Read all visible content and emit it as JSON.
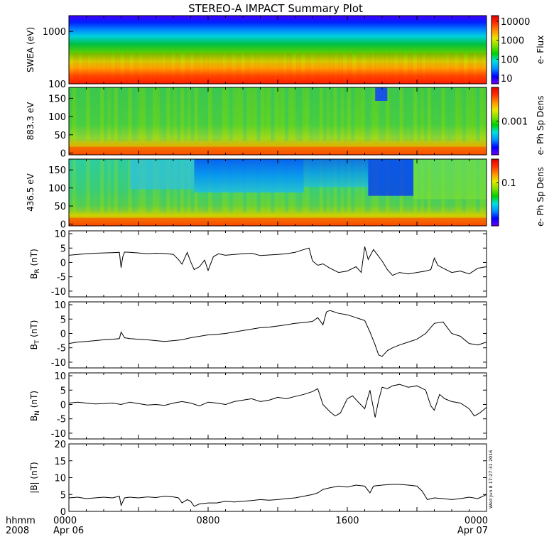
{
  "title": "STEREO-A IMPACT Summary Plot",
  "stamp": "Wed Jun  8 17:27:31 2016",
  "x_axis": {
    "label_line1": "hhmm",
    "label_line2": "2008",
    "ticks": [
      {
        "t": 0,
        "label": "0000",
        "sub": "Apr 06"
      },
      {
        "t": 8,
        "label": "0800",
        "sub": ""
      },
      {
        "t": 16,
        "label": "1600",
        "sub": ""
      },
      {
        "t": 24,
        "label": "0000",
        "sub": "Apr 07"
      }
    ]
  },
  "chart_data": [
    {
      "type": "heatmap",
      "panel": "swea",
      "ylabel": "SWEA (eV)",
      "yscale": "log",
      "ylim": [
        100,
        2000
      ],
      "yticks": [
        {
          "v": 100,
          "label": "100"
        },
        {
          "v": 1000,
          "label": "1000"
        }
      ],
      "colorbar": {
        "label": "e- Flux",
        "scale": "log",
        "range": [
          5,
          20000
        ],
        "ticks": [
          {
            "v": 10,
            "label": "10"
          },
          {
            "v": 100,
            "label": "100"
          },
          {
            "v": 1000,
            "label": "1000"
          },
          {
            "v": 10000,
            "label": "10000"
          }
        ]
      },
      "color_stops": [
        "#6a00ff",
        "#0000ff",
        "#0090ff",
        "#00e0e0",
        "#00d000",
        "#80e000",
        "#e8e800",
        "#ff9000",
        "#ff3000",
        "#e00000"
      ]
    },
    {
      "type": "heatmap",
      "panel": "pad_883",
      "ylabel": "883.3 eV",
      "ylim": [
        -5,
        180
      ],
      "yticks": [
        {
          "v": 0,
          "label": "0"
        },
        {
          "v": 50,
          "label": "50"
        },
        {
          "v": 100,
          "label": "100"
        },
        {
          "v": 150,
          "label": "150"
        }
      ],
      "colorbar": {
        "label": "e- Ph Sp Dens",
        "ticks": [
          {
            "label": "0.001"
          }
        ]
      }
    },
    {
      "type": "heatmap",
      "panel": "pad_436",
      "ylabel": "436.5 eV",
      "ylim": [
        -5,
        180
      ],
      "yticks": [
        {
          "v": 0,
          "label": "0"
        },
        {
          "v": 50,
          "label": "50"
        },
        {
          "v": 100,
          "label": "100"
        },
        {
          "v": 150,
          "label": "150"
        }
      ],
      "colorbar": {
        "label": "e- Ph Sp Dens",
        "ticks": [
          {
            "label": "0.1"
          }
        ]
      }
    },
    {
      "type": "line",
      "panel": "br",
      "ylabel": "B",
      "ylabel_sub": "R",
      "ylabel_unit": " (nT)",
      "ylim": [
        -12,
        11
      ],
      "yticks": [
        -10,
        -5,
        0,
        5,
        10
      ],
      "x": [
        0,
        0.5,
        1,
        1.5,
        2,
        2.5,
        2.9,
        3.0,
        3.1,
        3.2,
        3.5,
        4,
        4.5,
        5,
        5.5,
        6,
        6.3,
        6.5,
        6.8,
        7,
        7.2,
        7.5,
        7.8,
        8,
        8.3,
        8.6,
        9,
        9.5,
        10,
        10.5,
        11,
        11.5,
        12,
        12.5,
        13,
        13.5,
        13.8,
        14,
        14.3,
        14.6,
        15,
        15.5,
        16,
        16.5,
        16.8,
        17,
        17.2,
        17.5,
        18,
        18.3,
        18.6,
        19,
        19.5,
        20,
        20.5,
        20.8,
        21,
        21.2,
        21.5,
        22,
        22.5,
        23,
        23.5,
        24
      ],
      "y": [
        2.5,
        2.8,
        3.0,
        3.2,
        3.3,
        3.4,
        3.5,
        -1.8,
        2.0,
        3.6,
        3.5,
        3.3,
        3.0,
        3.2,
        3.1,
        2.8,
        1.0,
        -0.6,
        3.5,
        0.2,
        -2.5,
        -1.5,
        0.8,
        -2.8,
        2.0,
        3.0,
        2.5,
        2.8,
        3.0,
        3.2,
        2.4,
        2.6,
        2.8,
        3.0,
        3.5,
        4.5,
        5.0,
        0.5,
        -1.0,
        -0.5,
        -2.0,
        -3.5,
        -3.0,
        -1.5,
        -3.5,
        5.5,
        1.0,
        4.5,
        0.5,
        -2.5,
        -4.5,
        -3.5,
        -4.0,
        -3.5,
        -3.0,
        -2.5,
        1.5,
        -1.0,
        -2.0,
        -3.5,
        -3.0,
        -4.0,
        -2.0,
        -1.5
      ]
    },
    {
      "type": "line",
      "panel": "bt",
      "ylabel": "B",
      "ylabel_sub": "T",
      "ylabel_unit": " (nT)",
      "ylim": [
        -12,
        11
      ],
      "yticks": [
        -10,
        -5,
        0,
        5,
        10
      ],
      "x": [
        0,
        0.5,
        1,
        1.5,
        2,
        2.5,
        2.9,
        3.0,
        3.2,
        3.5,
        4,
        4.5,
        5,
        5.5,
        6,
        6.5,
        7,
        7.5,
        8,
        8.5,
        9,
        9.5,
        10,
        10.5,
        11,
        11.5,
        12,
        12.5,
        13,
        13.5,
        14,
        14.3,
        14.6,
        14.8,
        15,
        15.5,
        16,
        16.5,
        17,
        17.3,
        17.6,
        17.8,
        18,
        18.3,
        18.6,
        19,
        19.5,
        20,
        20.5,
        21,
        21.5,
        22,
        22.5,
        23,
        23.5,
        24
      ],
      "y": [
        -3.5,
        -3.0,
        -2.8,
        -2.5,
        -2.2,
        -2.0,
        -1.8,
        0.5,
        -1.5,
        -1.8,
        -2.0,
        -2.2,
        -2.5,
        -2.8,
        -2.5,
        -2.2,
        -1.5,
        -1.0,
        -0.5,
        -0.3,
        0.0,
        0.5,
        1.0,
        1.5,
        2.0,
        2.2,
        2.6,
        3.0,
        3.5,
        3.8,
        4.2,
        5.5,
        3.0,
        7.5,
        8.0,
        7.0,
        6.5,
        5.5,
        4.5,
        0.5,
        -4.0,
        -7.5,
        -8.0,
        -6.0,
        -5.0,
        -4.0,
        -3.0,
        -2.0,
        0.0,
        3.5,
        4.0,
        0.0,
        -1.0,
        -3.5,
        -4.0,
        -3.0
      ]
    },
    {
      "type": "line",
      "panel": "bn",
      "ylabel": "B",
      "ylabel_sub": "N",
      "ylabel_unit": " (nT)",
      "ylim": [
        -12,
        11
      ],
      "yticks": [
        -10,
        -5,
        0,
        5,
        10
      ],
      "x": [
        0,
        0.5,
        1,
        1.5,
        2,
        2.5,
        3,
        3.5,
        4,
        4.5,
        5,
        5.5,
        6,
        6.5,
        7,
        7.5,
        8,
        8.5,
        9,
        9.5,
        10,
        10.5,
        11,
        11.5,
        12,
        12.5,
        13,
        13.5,
        14,
        14.3,
        14.6,
        15,
        15.3,
        15.6,
        16,
        16.3,
        16.6,
        17,
        17.3,
        17.6,
        17.8,
        18,
        18.3,
        18.6,
        19,
        19.5,
        20,
        20.5,
        20.8,
        21,
        21.3,
        21.6,
        22,
        22.5,
        23,
        23.3,
        23.6,
        24
      ],
      "y": [
        0.5,
        0.8,
        0.5,
        0.2,
        0.3,
        0.5,
        0.0,
        0.8,
        0.3,
        -0.2,
        0.0,
        -0.3,
        0.5,
        1.0,
        0.5,
        -0.5,
        0.8,
        0.5,
        0.0,
        1.0,
        1.5,
        2.0,
        1.0,
        1.5,
        2.5,
        2.0,
        2.8,
        3.5,
        4.5,
        5.5,
        0.0,
        -2.5,
        -4.0,
        -3.0,
        2.0,
        3.0,
        1.0,
        -1.5,
        5.0,
        -4.5,
        1.5,
        6.0,
        5.5,
        6.5,
        7.0,
        6.0,
        6.5,
        5.0,
        -0.5,
        -2.0,
        3.5,
        2.0,
        1.0,
        0.5,
        -1.5,
        -4.0,
        -3.0,
        -1.0
      ]
    },
    {
      "type": "line",
      "panel": "bmag",
      "ylabel": "|B|",
      "ylabel_unit": " (nT)",
      "ylim": [
        0,
        20
      ],
      "yticks": [
        0,
        5,
        10,
        15,
        20
      ],
      "x": [
        0,
        0.5,
        1,
        1.5,
        2,
        2.5,
        2.9,
        3.0,
        3.2,
        3.5,
        4,
        4.5,
        5,
        5.5,
        6,
        6.3,
        6.5,
        6.8,
        7,
        7.2,
        7.5,
        8,
        8.5,
        9,
        9.5,
        10,
        10.5,
        11,
        11.5,
        12,
        12.5,
        13,
        13.5,
        14,
        14.3,
        14.6,
        15,
        15.5,
        16,
        16.5,
        17,
        17.3,
        17.5,
        18,
        18.5,
        19,
        19.5,
        20,
        20.3,
        20.6,
        21,
        21.5,
        22,
        22.5,
        23,
        23.5,
        24
      ],
      "y": [
        4.0,
        4.2,
        3.8,
        4.0,
        4.2,
        4.0,
        4.5,
        1.8,
        4.0,
        4.2,
        4.0,
        4.3,
        4.1,
        4.5,
        4.3,
        4.0,
        2.5,
        3.5,
        3.0,
        1.5,
        2.2,
        2.5,
        2.5,
        3.0,
        2.8,
        3.0,
        3.2,
        3.5,
        3.3,
        3.5,
        3.8,
        4.0,
        4.5,
        5.0,
        5.5,
        6.5,
        7.0,
        7.5,
        7.2,
        7.8,
        7.5,
        5.5,
        7.5,
        7.8,
        8.0,
        8.0,
        7.8,
        7.5,
        6.0,
        3.5,
        4.0,
        3.8,
        3.5,
        3.8,
        4.2,
        3.8,
        5.0
      ]
    }
  ]
}
